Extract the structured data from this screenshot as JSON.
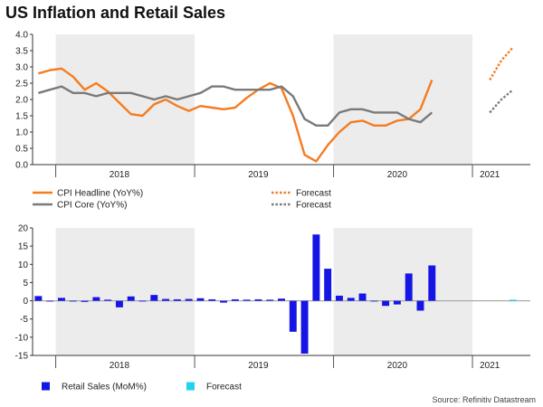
{
  "title": "US Inflation and Retail Sales",
  "source": "Source: Refinitiv Datastream",
  "colors": {
    "headline": "#f47c20",
    "core": "#7a7a7a",
    "retail": "#1515e6",
    "retail_forecast": "#22d3f0",
    "shade": "#ececec"
  },
  "chart_data": [
    {
      "type": "line",
      "title": "",
      "x_start": "2017-11",
      "ylim": [
        0,
        4.0
      ],
      "yticks": [
        "0.0",
        "0.5",
        "1.0",
        "1.5",
        "2.0",
        "2.5",
        "3.0",
        "3.5",
        "4.0"
      ],
      "year_labels": [
        {
          "label": "2018",
          "month": "2018-06"
        },
        {
          "label": "2019",
          "month": "2019-06"
        },
        {
          "label": "2020",
          "month": "2020-06"
        },
        {
          "label": "2021",
          "month": "2021-02"
        }
      ],
      "shaded_ranges": [
        [
          "2018-01",
          "2018-12"
        ],
        [
          "2020-01",
          "2020-12"
        ]
      ],
      "series": [
        {
          "name": "CPI Headline (YoY%)",
          "color_key": "headline",
          "style": "solid",
          "start": "2017-11",
          "values": [
            2.8,
            2.9,
            2.95,
            2.7,
            2.3,
            2.5,
            2.25,
            1.9,
            1.55,
            1.5,
            1.85,
            2.0,
            1.8,
            1.65,
            1.8,
            1.75,
            1.7,
            1.75,
            2.05,
            2.3,
            2.5,
            2.35,
            1.5,
            0.3,
            0.1,
            0.6,
            1.0,
            1.3,
            1.35,
            1.2,
            1.2,
            1.35,
            1.4,
            1.7,
            2.6
          ]
        },
        {
          "name": "Forecast",
          "color_key": "headline",
          "style": "dotted",
          "start": "2021-02",
          "values": [
            2.6,
            3.2,
            3.6
          ]
        },
        {
          "name": "CPI Core (YoY%)",
          "color_key": "core",
          "style": "solid",
          "start": "2017-11",
          "values": [
            2.2,
            2.3,
            2.4,
            2.2,
            2.2,
            2.1,
            2.2,
            2.2,
            2.2,
            2.1,
            2.0,
            2.1,
            2.0,
            2.1,
            2.2,
            2.4,
            2.4,
            2.3,
            2.3,
            2.3,
            2.3,
            2.4,
            2.1,
            1.4,
            1.2,
            1.2,
            1.6,
            1.7,
            1.7,
            1.6,
            1.6,
            1.6,
            1.4,
            1.3,
            1.6
          ]
        },
        {
          "name": "Forecast",
          "color_key": "core",
          "style": "dotted",
          "start": "2021-02",
          "values": [
            1.6,
            2.0,
            2.3
          ]
        }
      ]
    },
    {
      "type": "bar",
      "title": "",
      "x_start": "2017-11",
      "ylim": [
        -15,
        20
      ],
      "yticks": [
        "-15",
        "-10",
        "-5",
        "0",
        "5",
        "10",
        "15",
        "20"
      ],
      "year_labels": [
        {
          "label": "2018",
          "month": "2018-06"
        },
        {
          "label": "2019",
          "month": "2019-06"
        },
        {
          "label": "2020",
          "month": "2020-06"
        },
        {
          "label": "2021",
          "month": "2021-02"
        }
      ],
      "shaded_ranges": [
        [
          "2018-01",
          "2018-12"
        ],
        [
          "2020-01",
          "2020-12"
        ]
      ],
      "series": [
        {
          "name": "Retail Sales (MoM%)",
          "color_key": "retail",
          "start": "2017-11",
          "values": [
            1.3,
            -0.2,
            0.8,
            -0.2,
            -0.3,
            1.0,
            0.3,
            -1.8,
            1.2,
            0.0,
            1.6,
            0.5,
            0.4,
            0.5,
            0.7,
            0.4,
            -0.5,
            0.4,
            0.3,
            0.4,
            0.3,
            0.6,
            -8.5,
            -14.5,
            18.2,
            8.8,
            1.4,
            0.8,
            2.0,
            -0.1,
            -1.4,
            -1.0,
            7.5,
            -2.7,
            9.7
          ]
        },
        {
          "name": "Forecast",
          "color_key": "retail_forecast",
          "start": "2021-04",
          "values": [
            0.3
          ]
        }
      ]
    }
  ],
  "legend_top": [
    {
      "label": "CPI Headline (YoY%)",
      "color_key": "headline",
      "style": "solid"
    },
    {
      "label": "Forecast",
      "color_key": "headline",
      "style": "dotted"
    },
    {
      "label": "CPI Core (YoY%)",
      "color_key": "core",
      "style": "solid"
    },
    {
      "label": "Forecast",
      "color_key": "core",
      "style": "dotted"
    }
  ],
  "legend_bottom": [
    {
      "label": "Retail Sales (MoM%)",
      "color_key": "retail"
    },
    {
      "label": "Forecast",
      "color_key": "retail_forecast"
    }
  ]
}
